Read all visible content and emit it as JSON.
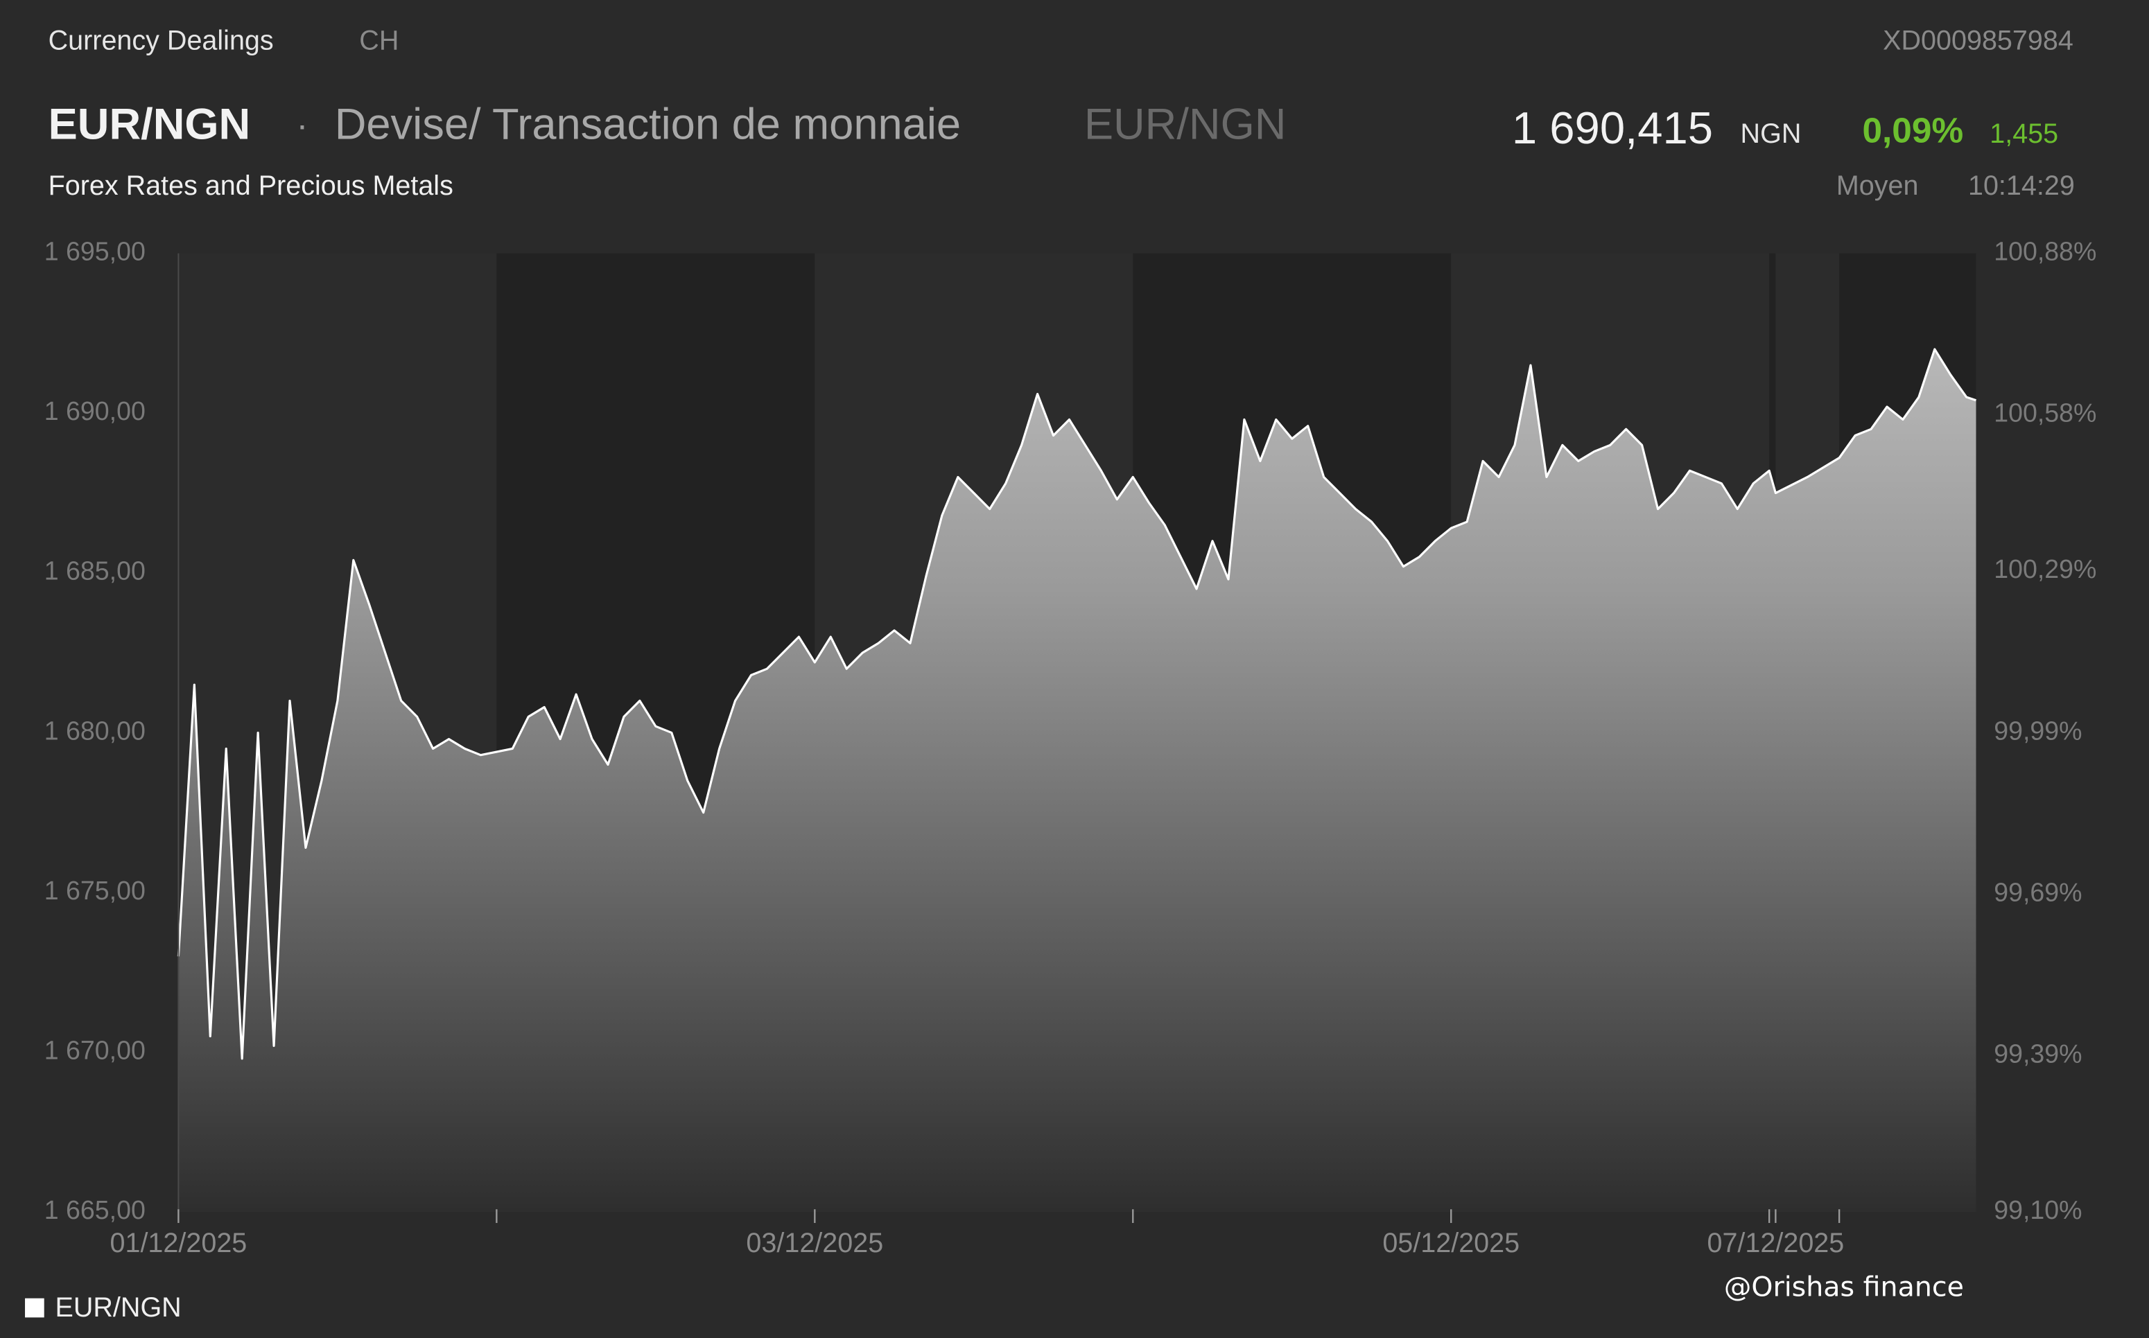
{
  "header": {
    "section": "Currency Dealings",
    "market": "CH",
    "isin": "XD0009857984",
    "symbol": "EUR/NGN",
    "separator": "·",
    "description": "Devise/ Transaction de monnaie",
    "symbol_alt": "EUR/NGN",
    "subtitle": "Forex Rates and Precious Metals",
    "price": "1 690,415",
    "currency": "NGN",
    "change_pct": "0,09%",
    "change": "1,455",
    "price_type": "Moyen",
    "time": "10:14:29"
  },
  "watermark": "@Orishas finance",
  "chart_data": {
    "type": "area",
    "series": [
      {
        "name": "EUR/NGN",
        "color": "#ffffff",
        "x": [
          1.0,
          1.05,
          1.1,
          1.15,
          1.2,
          1.25,
          1.3,
          1.35,
          1.4,
          1.45,
          1.5,
          1.55,
          1.6,
          1.65,
          1.7,
          1.75,
          1.8,
          1.85,
          1.9,
          1.95,
          2.0,
          2.05,
          2.1,
          2.15,
          2.2,
          2.25,
          2.3,
          2.35,
          2.4,
          2.45,
          2.5,
          2.55,
          2.6,
          2.65,
          2.7,
          2.75,
          2.8,
          2.85,
          2.9,
          2.95,
          3.0,
          3.05,
          3.1,
          3.15,
          3.2,
          3.25,
          3.3,
          3.35,
          3.4,
          3.45,
          3.5,
          3.55,
          3.6,
          3.65,
          3.7,
          3.75,
          3.8,
          3.85,
          3.9,
          3.95,
          4.0,
          4.05,
          4.1,
          4.15,
          4.2,
          4.25,
          4.3,
          4.35,
          4.4,
          4.45,
          4.5,
          4.55,
          4.6,
          4.65,
          4.7,
          4.75,
          4.8,
          4.85,
          4.9,
          4.95,
          5.0,
          5.05,
          5.1,
          5.15,
          5.2,
          5.25,
          5.3,
          5.35,
          5.4,
          5.45,
          5.5,
          5.55,
          5.6,
          5.65,
          5.7,
          5.75,
          5.8,
          5.85,
          5.9,
          5.95,
          6.0,
          7.0,
          7.5,
          8.0,
          8.05,
          8.1,
          8.15,
          8.2,
          8.25,
          8.3,
          8.35,
          8.4,
          8.43
        ],
        "values": [
          1673.0,
          1681.5,
          1670.5,
          1679.5,
          1669.8,
          1680.0,
          1670.2,
          1681.0,
          1676.4,
          1678.5,
          1681.0,
          1685.4,
          1684.0,
          1682.5,
          1681.0,
          1680.5,
          1679.5,
          1679.8,
          1679.5,
          1679.3,
          1679.4,
          1679.5,
          1680.5,
          1680.8,
          1679.8,
          1681.2,
          1679.8,
          1679.0,
          1680.5,
          1681.0,
          1680.2,
          1680.0,
          1678.5,
          1677.5,
          1679.5,
          1681.0,
          1681.8,
          1682.0,
          1682.5,
          1683.0,
          1682.2,
          1683.0,
          1682.0,
          1682.5,
          1682.8,
          1683.2,
          1682.8,
          1684.9,
          1686.8,
          1688.0,
          1687.5,
          1687.0,
          1687.8,
          1689.0,
          1690.6,
          1689.3,
          1689.8,
          1689.0,
          1688.2,
          1687.3,
          1688.0,
          1687.2,
          1686.5,
          1685.5,
          1684.5,
          1686.0,
          1684.8,
          1689.8,
          1688.5,
          1689.8,
          1689.2,
          1689.6,
          1688.0,
          1687.5,
          1687.0,
          1686.6,
          1686.0,
          1685.2,
          1685.5,
          1686.0,
          1686.4,
          1686.6,
          1688.5,
          1688.0,
          1689.0,
          1691.5,
          1688.0,
          1689.0,
          1688.5,
          1688.8,
          1689.0,
          1689.5,
          1689.0,
          1687.0,
          1687.5,
          1688.2,
          1688.0,
          1687.8,
          1687.0,
          1687.8,
          1688.2,
          1687.5,
          1688.0,
          1688.6,
          1689.3,
          1689.5,
          1690.2,
          1689.8,
          1690.5,
          1692.0,
          1691.2,
          1690.5,
          1690.4
        ]
      }
    ],
    "xlim": [
      1,
      8.43
    ],
    "xticks": [
      {
        "value": 1,
        "label": "01/12/2025"
      },
      {
        "value": 3,
        "label": "03/12/2025"
      },
      {
        "value": 5,
        "label": "05/12/2025"
      },
      {
        "value": 7,
        "label": "07/12/2025"
      }
    ],
    "xminorticks": [
      2,
      4,
      6,
      8
    ],
    "ylim": [
      1665,
      1695
    ],
    "yticks": [
      {
        "value": 1665,
        "label": "1 665,00"
      },
      {
        "value": 1670,
        "label": "1 670,00"
      },
      {
        "value": 1675,
        "label": "1 675,00"
      },
      {
        "value": 1680,
        "label": "1 680,00"
      },
      {
        "value": 1685,
        "label": "1 685,00"
      },
      {
        "value": 1690,
        "label": "1 690,00"
      },
      {
        "value": 1695,
        "label": "1 695,00"
      }
    ],
    "y2lim": [
      99.1,
      100.88
    ],
    "y2ticks": [
      {
        "value": 99.1,
        "label": "99,10%"
      },
      {
        "value": 99.39,
        "label": "99,39%"
      },
      {
        "value": 99.69,
        "label": "99,69%"
      },
      {
        "value": 99.99,
        "label": "99,99%"
      },
      {
        "value": 100.29,
        "label": "100,29%"
      },
      {
        "value": 100.58,
        "label": "100,58%"
      },
      {
        "value": 100.88,
        "label": "100,88%"
      }
    ],
    "legend": "bottom-left"
  }
}
